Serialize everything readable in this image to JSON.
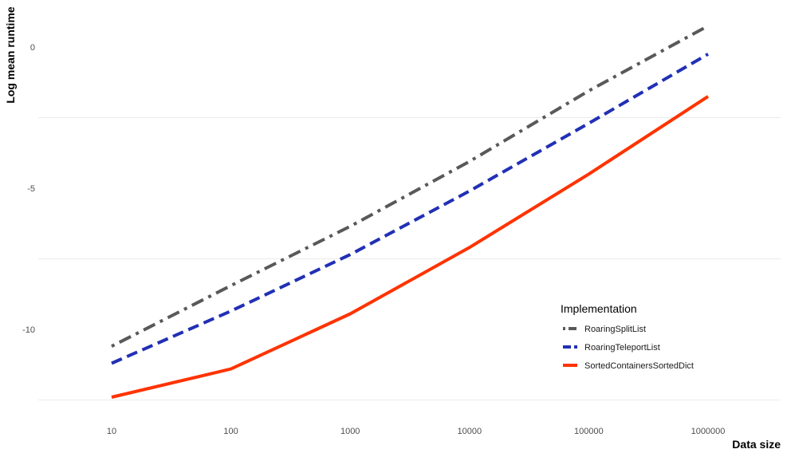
{
  "chart_data": {
    "type": "line",
    "title": "",
    "xlabel": "Data size",
    "ylabel": "Log mean runtime",
    "x": [
      10,
      100,
      1000,
      10000,
      100000,
      1000000
    ],
    "x_tick_labels": [
      "10",
      "100",
      "1000",
      "10000",
      "100000",
      "1000000"
    ],
    "x_scale": "log10",
    "y_tick_labels": [
      "0",
      "-5",
      "-10"
    ],
    "y_ticks": [
      0,
      -5,
      -10
    ],
    "ylim": [
      -12.7,
      1.6
    ],
    "grid": true,
    "legend": {
      "title": "Implementation",
      "placement": "bottom-right-inside"
    },
    "series": [
      {
        "name": "RoaringSplitList",
        "color": "#595959",
        "dash": "dotdash",
        "values": [
          -10.6,
          -8.45,
          -6.35,
          -4.05,
          -1.55,
          0.75
        ]
      },
      {
        "name": "RoaringTeleportList",
        "color": "#2130b5",
        "dash": "dashed",
        "values": [
          -11.2,
          -9.35,
          -7.35,
          -5.1,
          -2.7,
          -0.25
        ]
      },
      {
        "name": "SortedContainersSortedDict",
        "color": "#ff3300",
        "dash": "solid",
        "values": [
          -12.4,
          -11.4,
          -9.45,
          -7.1,
          -4.5,
          -1.75
        ]
      }
    ]
  }
}
